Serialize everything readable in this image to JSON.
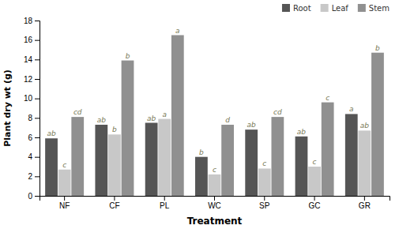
{
  "chart_data": {
    "type": "bar",
    "categories": [
      "NF",
      "CF",
      "PL",
      "WC",
      "SP",
      "GC",
      "GR"
    ],
    "series": [
      {
        "name": "Root",
        "color": "#555555",
        "values": [
          5.9,
          7.3,
          7.5,
          4.0,
          6.8,
          6.1,
          8.4
        ],
        "annotations": [
          "ab",
          "ab",
          "ab",
          "b",
          "ab",
          "ab",
          "a"
        ]
      },
      {
        "name": "Leaf",
        "color": "#c8c8c8",
        "values": [
          2.7,
          6.3,
          7.9,
          2.2,
          2.8,
          3.0,
          6.7
        ],
        "annotations": [
          "c",
          "b",
          "a",
          "c",
          "c",
          "c",
          "ab"
        ]
      },
      {
        "name": "Stem",
        "color": "#909090",
        "values": [
          8.1,
          13.9,
          16.5,
          7.3,
          8.1,
          9.6,
          14.7
        ],
        "annotations": [
          "cd",
          "b",
          "a",
          "d",
          "cd",
          "c",
          "b"
        ]
      }
    ],
    "x_label": "Treatment",
    "y_label": "Plant dry wt (g)",
    "ylim": [
      0,
      18
    ],
    "yticks": [
      0,
      2,
      4,
      6,
      8,
      10,
      12,
      14,
      16,
      18
    ],
    "grid": false,
    "legend": "upper right"
  }
}
